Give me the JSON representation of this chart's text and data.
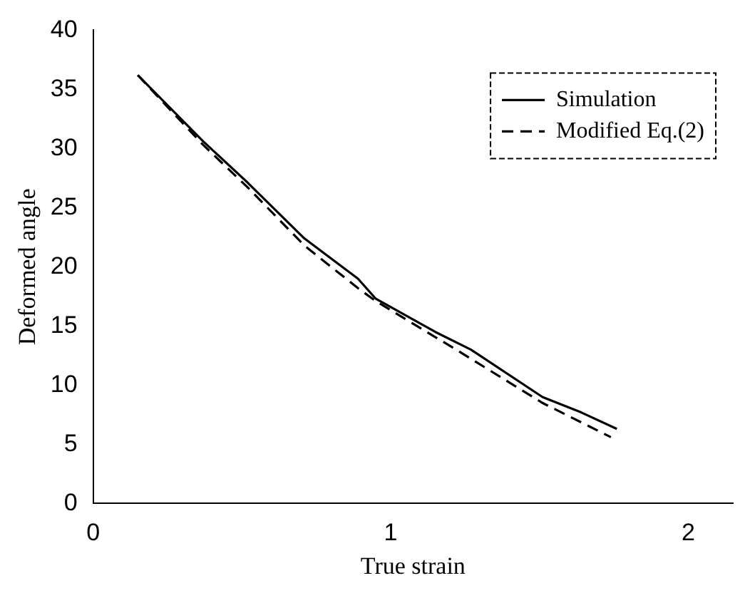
{
  "chart_data": {
    "type": "line",
    "xlabel": "True strain",
    "ylabel": "Deformed angle",
    "xlim": [
      0,
      2.15
    ],
    "xticks": [
      0,
      1,
      2
    ],
    "ylim": [
      0,
      40
    ],
    "yticks": [
      0,
      5,
      10,
      15,
      20,
      25,
      30,
      35,
      40
    ],
    "grid": false,
    "legend": "top right",
    "marker": "none",
    "series": [
      {
        "name": "Simulation",
        "color": "#000000",
        "line_style": "solid",
        "x": [
          0.15,
          0.37,
          0.52,
          0.71,
          0.89,
          0.95,
          1.15,
          1.27,
          1.51,
          1.64,
          1.76
        ],
        "values": [
          36.2,
          30.6,
          27.1,
          22.4,
          19.0,
          17.3,
          14.5,
          13.0,
          9.0,
          7.7,
          6.3
        ]
      },
      {
        "name": "Modified Eq.(2)",
        "color": "#000000",
        "line_style": "dashed",
        "x": [
          0.15,
          0.37,
          0.52,
          0.71,
          0.89,
          0.95,
          1.22,
          1.51,
          1.74
        ],
        "values": [
          36.2,
          30.3,
          26.7,
          21.8,
          18.2,
          17.1,
          13.0,
          8.5,
          5.6
        ]
      }
    ]
  }
}
